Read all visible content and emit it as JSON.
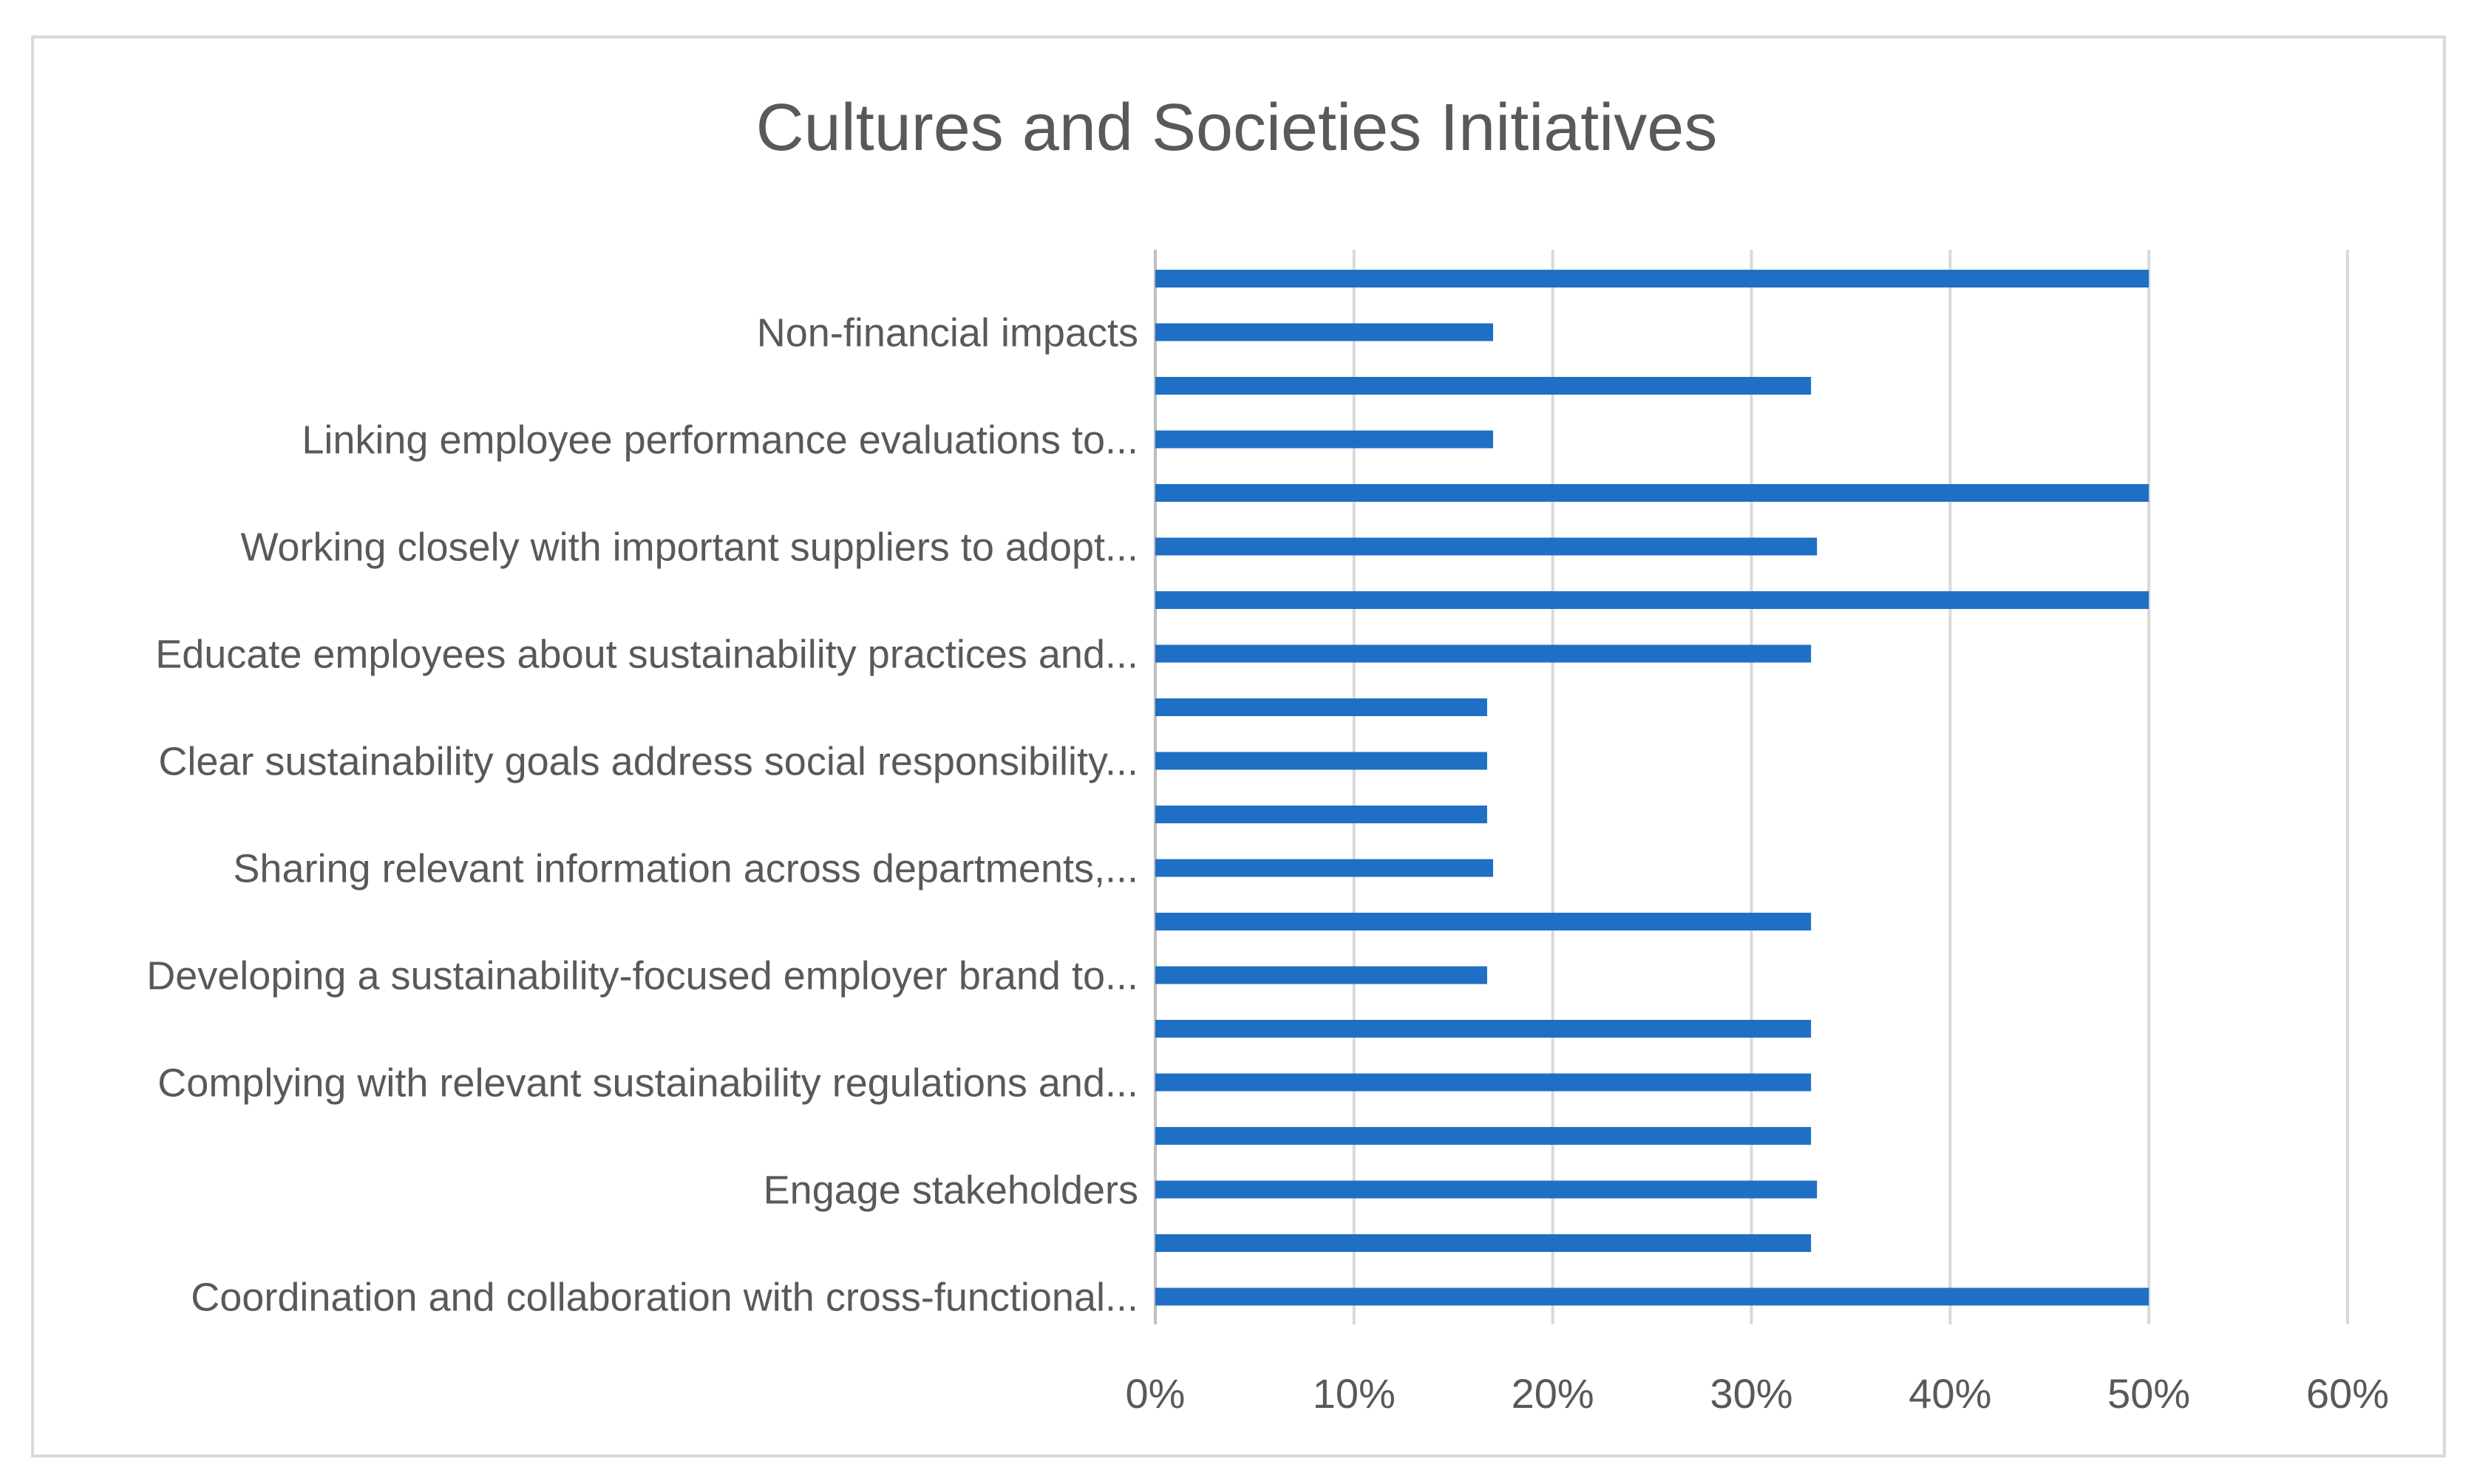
{
  "chart_data": {
    "type": "bar",
    "orientation": "horizontal",
    "title": "Cultures and Societies Initiatives",
    "xlim": [
      0,
      0.6
    ],
    "x_ticks": [
      "0%",
      "10%",
      "20%",
      "30%",
      "40%",
      "50%",
      "60%"
    ],
    "grid": true,
    "bar_color": "#1F6FC5",
    "category_labels": [
      "Non-financial impacts",
      "Linking employee performance evaluations to...",
      "Working closely with important suppliers to adopt...",
      "Educate employees about sustainability practices and...",
      "Clear sustainability goals address social responsibility...",
      "Sharing relevant information across departments,...",
      "Developing a sustainability-focused employer brand to...",
      "Complying with relevant sustainability regulations and...",
      "Engage stakeholders",
      "Coordination and collaboration with cross-functional..."
    ],
    "values_top_to_bottom": [
      0.5,
      0.17,
      0.33,
      0.17,
      0.5,
      0.333,
      0.5,
      0.33,
      0.167,
      0.167,
      0.167,
      0.17,
      0.33,
      0.167,
      0.33,
      0.33,
      0.33,
      0.333,
      0.33,
      0.5
    ],
    "labeled_bar_indices": [
      1,
      3,
      5,
      7,
      9,
      11,
      13,
      15,
      17,
      19
    ]
  }
}
